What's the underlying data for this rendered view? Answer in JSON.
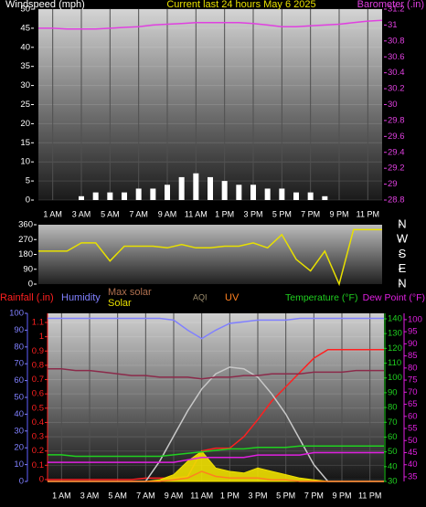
{
  "chart_data": [
    {
      "type": "line",
      "title": "Current last 24 hours May 6 2025",
      "x": [
        0,
        1,
        2,
        3,
        4,
        5,
        6,
        7,
        8,
        9,
        10,
        11,
        12,
        13,
        14,
        15,
        16,
        17,
        18,
        19,
        20,
        21,
        22,
        23,
        24
      ],
      "xlim": [
        0,
        24
      ],
      "xticks": [
        {
          "value": 1,
          "label": "1 AM"
        },
        {
          "value": 3,
          "label": "3 AM"
        },
        {
          "value": 5,
          "label": "5 AM"
        },
        {
          "value": 7,
          "label": "7 AM"
        },
        {
          "value": 9,
          "label": "9 AM"
        },
        {
          "value": 11,
          "label": "11 AM"
        },
        {
          "value": 13,
          "label": "1 PM"
        },
        {
          "value": 15,
          "label": "3 PM"
        },
        {
          "value": 17,
          "label": "5 PM"
        },
        {
          "value": 19,
          "label": "7 PM"
        },
        {
          "value": 21,
          "label": "9 PM"
        },
        {
          "value": 23,
          "label": "11 PM"
        }
      ],
      "ylim": [
        0,
        50
      ],
      "yticks": [
        0,
        5,
        10,
        15,
        20,
        25,
        30,
        35,
        40,
        45,
        50
      ],
      "y2lim": [
        28.8,
        31.2
      ],
      "y2ticks": [
        28.8,
        29,
        29.2,
        29.4,
        29.6,
        29.8,
        30,
        30.2,
        30.4,
        30.6,
        30.8,
        31,
        31.2
      ],
      "grid": true,
      "series": [
        {
          "name": "Windspeed (mph)",
          "type": "bar",
          "color": "#ffffff",
          "values": [
            0,
            0,
            0,
            1,
            2,
            2,
            2,
            3,
            3,
            4,
            6,
            7,
            6,
            5,
            4,
            4,
            3,
            3,
            2,
            2,
            1,
            0,
            0,
            0,
            0
          ]
        },
        {
          "name": "Barometer (.in)",
          "axis": "y2",
          "color": "#e040e0",
          "values": [
            30.96,
            30.96,
            30.95,
            30.95,
            30.95,
            30.96,
            30.97,
            30.98,
            31.0,
            31.01,
            31.02,
            31.03,
            31.03,
            31.03,
            31.03,
            31.02,
            31.0,
            30.98,
            30.98,
            30.99,
            31.0,
            31.01,
            31.03,
            31.05,
            31.06
          ]
        }
      ]
    },
    {
      "type": "line",
      "x": [
        0,
        1,
        2,
        3,
        4,
        5,
        6,
        7,
        8,
        9,
        10,
        11,
        12,
        13,
        14,
        15,
        16,
        17,
        18,
        19,
        20,
        21,
        22,
        23,
        24
      ],
      "xlim": [
        0,
        24
      ],
      "ylim": [
        0,
        360
      ],
      "yticks": [
        0,
        90,
        180,
        270,
        360
      ],
      "y2lim": [
        0,
        360
      ],
      "y2ticks": [
        {
          "value": 360,
          "label": "N"
        },
        {
          "value": 270,
          "label": "W"
        },
        {
          "value": 180,
          "label": "S"
        },
        {
          "value": 90,
          "label": "E"
        },
        {
          "value": 0,
          "label": "N"
        }
      ],
      "series": [
        {
          "color": "#e8e000",
          "values": [
            200,
            200,
            200,
            250,
            250,
            140,
            230,
            230,
            230,
            220,
            240,
            220,
            220,
            230,
            230,
            250,
            220,
            300,
            150,
            80,
            200,
            0,
            330,
            330,
            330
          ]
        }
      ]
    },
    {
      "type": "line",
      "x": [
        0,
        1,
        2,
        3,
        4,
        5,
        6,
        7,
        8,
        9,
        10,
        11,
        12,
        13,
        14,
        15,
        16,
        17,
        18,
        19,
        20,
        21,
        22,
        23,
        24
      ],
      "xlim": [
        0,
        24
      ],
      "xticks": [
        {
          "value": 1,
          "label": "1 AM"
        },
        {
          "value": 3,
          "label": "3 AM"
        },
        {
          "value": 5,
          "label": "5 AM"
        },
        {
          "value": 7,
          "label": "7 AM"
        },
        {
          "value": 9,
          "label": "9 AM"
        },
        {
          "value": 11,
          "label": "11 AM"
        },
        {
          "value": 13,
          "label": "1 PM"
        },
        {
          "value": 15,
          "label": "3 PM"
        },
        {
          "value": 17,
          "label": "5 PM"
        },
        {
          "value": 19,
          "label": "7 PM"
        },
        {
          "value": 21,
          "label": "9 PM"
        },
        {
          "value": 23,
          "label": "11 PM"
        }
      ],
      "ylim": [
        -0.013,
        1.164
      ],
      "yticks": [
        0,
        0.1,
        0.2,
        0.3,
        0.4,
        0.5,
        0.6,
        0.7,
        0.8,
        0.9,
        1,
        1.1
      ],
      "y3lim": [
        0,
        100
      ],
      "y3ticks": [
        0,
        10,
        20,
        30,
        40,
        50,
        60,
        70,
        80,
        90,
        100
      ],
      "y2lim": [
        30,
        143.7
      ],
      "y2ticks": [
        30,
        40,
        50,
        60,
        70,
        80,
        90,
        100,
        110,
        120,
        130,
        140
      ],
      "y4lim": [
        33.1,
        102.6
      ],
      "y4ticks": [
        35,
        40,
        45,
        50,
        55,
        60,
        65,
        70,
        75,
        80,
        85,
        90,
        95,
        100
      ],
      "grid": true,
      "series": [
        {
          "name": "Rainfall (.in)",
          "color": "#ff2020",
          "values": [
            0,
            0,
            0,
            0,
            0,
            0,
            0,
            0.01,
            0.01,
            0.01,
            0.02,
            0.2,
            0.22,
            0.22,
            0.3,
            0.42,
            0.55,
            0.65,
            0.75,
            0.85,
            0.91,
            0.91,
            0.91,
            0.91,
            0.91
          ]
        },
        {
          "name": "Humidity",
          "axis": "y3",
          "color": "#8080ff",
          "values": [
            97,
            97,
            97,
            97,
            97,
            97,
            97,
            97,
            97,
            96,
            90,
            85,
            90,
            94,
            95,
            96,
            96,
            96,
            97,
            97,
            97,
            97,
            97,
            97,
            97
          ]
        },
        {
          "name": "Max solar",
          "axis": "y3",
          "color": "#c8c8c8",
          "values": [
            0,
            0,
            0,
            0,
            0,
            0,
            0,
            0,
            12,
            27,
            42,
            55,
            64,
            68,
            67,
            62,
            52,
            40,
            25,
            10,
            0,
            0,
            0,
            0,
            0
          ]
        },
        {
          "name": "Solar",
          "axis": "y3",
          "type": "area",
          "color": "#f0e000",
          "values": [
            0,
            0,
            0,
            0,
            0,
            0,
            0,
            0,
            1,
            4,
            12,
            18,
            8,
            6,
            5,
            8,
            6,
            4,
            2,
            1,
            0,
            0,
            0,
            0,
            0
          ]
        },
        {
          "name": "AQI",
          "axis": "y3",
          "color": "#8b2a4a",
          "values": [
            67,
            67,
            66,
            66,
            65,
            64,
            63,
            63,
            62,
            62,
            62,
            61,
            62,
            62,
            63,
            63,
            64,
            64,
            64,
            65,
            65,
            65,
            66,
            66,
            66
          ]
        },
        {
          "name": "UV",
          "axis": "y3",
          "color": "#ff8020",
          "values": [
            0,
            0,
            0,
            0,
            0,
            0,
            0,
            0,
            0,
            1,
            2,
            6,
            3,
            2,
            2,
            2,
            1,
            1,
            0,
            0,
            0,
            0,
            0,
            0,
            0
          ]
        },
        {
          "name": "Temperature (°F)",
          "axis": "y2",
          "color": "#20d020",
          "values": [
            48,
            48,
            47,
            47,
            47,
            47,
            47,
            47,
            47,
            48,
            49,
            50,
            51,
            52,
            52,
            53,
            53,
            53,
            54,
            54,
            54,
            54,
            54,
            54,
            54
          ]
        },
        {
          "name": "Dew Point (°F)",
          "axis": "y4",
          "color": "#e020e0",
          "values": [
            41,
            41,
            41,
            41,
            41,
            41,
            41,
            41,
            41,
            41,
            42,
            43,
            43,
            43,
            43,
            44,
            44,
            44,
            44,
            45,
            45,
            45,
            45,
            45,
            45
          ]
        }
      ]
    }
  ]
}
